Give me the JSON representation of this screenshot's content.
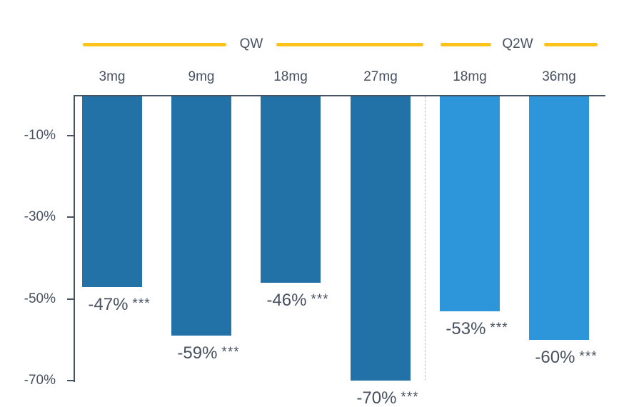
{
  "chart_data": {
    "type": "bar",
    "title": "",
    "unit": "%",
    "legend_position": "top",
    "grid": false,
    "groups": [
      {
        "name": "QW",
        "doses": [
          "3mg",
          "9mg",
          "18mg",
          "27mg"
        ]
      },
      {
        "name": "Q2W",
        "doses": [
          "18mg",
          "36mg"
        ]
      }
    ],
    "bars": [
      {
        "group": "QW",
        "dose": "3mg",
        "value": -47,
        "label": "-47%",
        "significance": "***"
      },
      {
        "group": "QW",
        "dose": "9mg",
        "value": -59,
        "label": "-59%",
        "significance": "***"
      },
      {
        "group": "QW",
        "dose": "18mg",
        "value": -46,
        "label": "-46%",
        "significance": "***"
      },
      {
        "group": "QW",
        "dose": "27mg",
        "value": -70,
        "label": "-70%",
        "significance": "***"
      },
      {
        "group": "Q2W",
        "dose": "18mg",
        "value": -53,
        "label": "-53%",
        "significance": "***"
      },
      {
        "group": "Q2W",
        "dose": "36mg",
        "value": -60,
        "label": "-60%",
        "significance": "***"
      }
    ],
    "y_axis": {
      "tick_labels": [
        "-10%",
        "-30%",
        "-50%",
        "-70%"
      ],
      "tick_values": [
        -10,
        -30,
        -50,
        -70
      ],
      "range": [
        0,
        -70
      ]
    },
    "colors": {
      "qw_bar": "#2272A8",
      "q2w_bar": "#2D96DB",
      "accent_line": "#FBC31A",
      "text": "#475160",
      "axis": "#465362",
      "separator": "#BFBFBF"
    }
  }
}
